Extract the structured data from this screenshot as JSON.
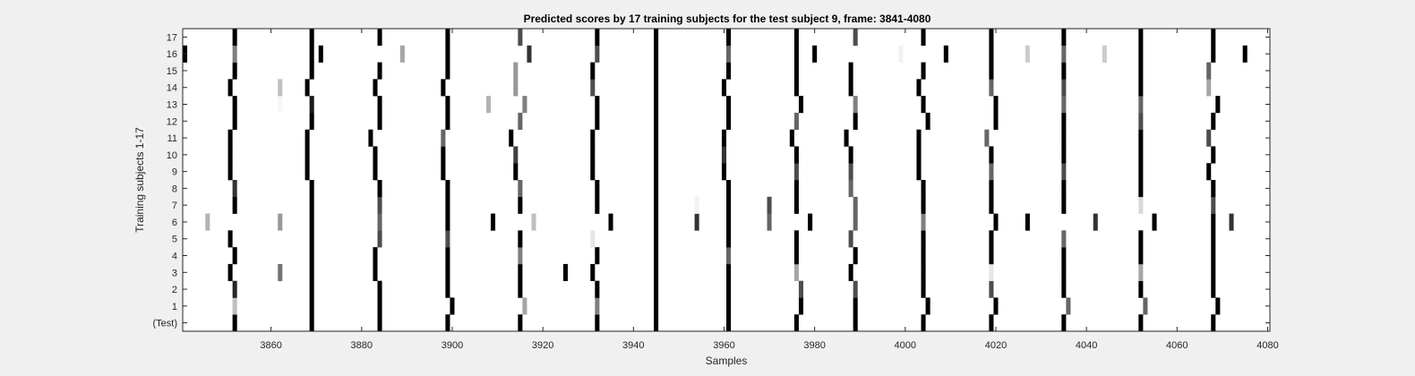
{
  "chart_data": {
    "type": "heatmap",
    "title": "Predicted scores by 17 training subjects for the test subject 9, frame: 3841-4080",
    "xlabel": "Samples",
    "ylabel": "Training subjects 1-17",
    "xlim": [
      3841,
      4080
    ],
    "xticks": [
      3860,
      3880,
      3900,
      3920,
      3940,
      3960,
      3980,
      4000,
      4020,
      4040,
      4060,
      4080
    ],
    "rows": [
      "(Test)",
      "1",
      "2",
      "3",
      "4",
      "5",
      "6",
      "7",
      "8",
      "9",
      "10",
      "11",
      "12",
      "13",
      "14",
      "15",
      "16",
      "17"
    ],
    "colormap": "gray (0 = black, 1 = white)",
    "background_value": 1,
    "marks_note": "each entry: [sample, intensity] where intensity is darkness 0-1",
    "marks": [
      [
        [
          3852,
          1
        ],
        [
          3869,
          1
        ],
        [
          3884,
          1
        ],
        [
          3899,
          1
        ],
        [
          3915,
          1
        ],
        [
          3932,
          1
        ],
        [
          3945,
          1
        ],
        [
          3961,
          1
        ],
        [
          3976,
          1
        ],
        [
          3989,
          1
        ],
        [
          4004,
          1
        ],
        [
          4019,
          1
        ],
        [
          4035,
          1
        ],
        [
          4052,
          1
        ],
        [
          4068,
          1
        ]
      ],
      [
        [
          3852,
          0.25
        ],
        [
          3869,
          1
        ],
        [
          3884,
          1
        ],
        [
          3900,
          1
        ],
        [
          3916,
          0.35
        ],
        [
          3932,
          0.5
        ],
        [
          3945,
          1
        ],
        [
          3961,
          1
        ],
        [
          3977,
          1
        ],
        [
          3989,
          1
        ],
        [
          4005,
          1
        ],
        [
          4020,
          1
        ],
        [
          4036,
          0.6
        ],
        [
          4053,
          0.6
        ],
        [
          4069,
          1
        ]
      ],
      [
        [
          3852,
          0.85
        ],
        [
          3869,
          1
        ],
        [
          3884,
          1
        ],
        [
          3899,
          1
        ],
        [
          3915,
          1
        ],
        [
          3932,
          1
        ],
        [
          3945,
          1
        ],
        [
          3961,
          1
        ],
        [
          3977,
          0.7
        ],
        [
          3989,
          0.7
        ],
        [
          4004,
          1
        ],
        [
          4019,
          0.7
        ],
        [
          4035,
          1
        ],
        [
          4052,
          1
        ],
        [
          4068,
          1
        ]
      ],
      [
        [
          3851,
          1
        ],
        [
          3862,
          0.55
        ],
        [
          3869,
          1
        ],
        [
          3883,
          1
        ],
        [
          3899,
          1
        ],
        [
          3915,
          1
        ],
        [
          3925,
          1
        ],
        [
          3931,
          1
        ],
        [
          3945,
          1
        ],
        [
          3961,
          1
        ],
        [
          3976,
          0.35
        ],
        [
          3988,
          1
        ],
        [
          4004,
          1
        ],
        [
          4019,
          0.1
        ],
        [
          4035,
          1
        ],
        [
          4052,
          0.35
        ],
        [
          4068,
          1
        ]
      ],
      [
        [
          3852,
          1
        ],
        [
          3869,
          1
        ],
        [
          3883,
          1
        ],
        [
          3899,
          1
        ],
        [
          3915,
          0.5
        ],
        [
          3932,
          1
        ],
        [
          3945,
          1
        ],
        [
          3961,
          0.6
        ],
        [
          3976,
          1
        ],
        [
          3989,
          1
        ],
        [
          4004,
          1
        ],
        [
          4019,
          1
        ],
        [
          4035,
          1
        ],
        [
          4052,
          1
        ],
        [
          4068,
          1
        ]
      ],
      [
        [
          3851,
          1
        ],
        [
          3869,
          1
        ],
        [
          3884,
          0.7
        ],
        [
          3899,
          0.7
        ],
        [
          3915,
          1
        ],
        [
          3931,
          0.1
        ],
        [
          3945,
          1
        ],
        [
          3961,
          1
        ],
        [
          3976,
          1
        ],
        [
          3988,
          0.7
        ],
        [
          4004,
          1
        ],
        [
          4019,
          1
        ],
        [
          4035,
          0.6
        ],
        [
          4052,
          1
        ],
        [
          4068,
          1
        ]
      ],
      [
        [
          3846,
          0.3
        ],
        [
          3862,
          0.4
        ],
        [
          3869,
          1
        ],
        [
          3884,
          0.6
        ],
        [
          3899,
          1
        ],
        [
          3909,
          1
        ],
        [
          3918,
          0.25
        ],
        [
          3935,
          1
        ],
        [
          3945,
          1
        ],
        [
          3954,
          0.8
        ],
        [
          3961,
          1
        ],
        [
          3970,
          0.6
        ],
        [
          3979,
          1
        ],
        [
          3989,
          0.6
        ],
        [
          4004,
          0.5
        ],
        [
          4020,
          1
        ],
        [
          4027,
          1
        ],
        [
          4042,
          0.8
        ],
        [
          4055,
          1
        ],
        [
          4068,
          1
        ],
        [
          4072,
          0.8
        ]
      ],
      [
        [
          3852,
          1
        ],
        [
          3869,
          1
        ],
        [
          3884,
          0.7
        ],
        [
          3899,
          1
        ],
        [
          3915,
          1
        ],
        [
          3932,
          1
        ],
        [
          3945,
          1
        ],
        [
          3954,
          0.05
        ],
        [
          3961,
          1
        ],
        [
          3970,
          0.7
        ],
        [
          3976,
          1
        ],
        [
          3989,
          0.6
        ],
        [
          4004,
          1
        ],
        [
          4019,
          1
        ],
        [
          4035,
          1
        ],
        [
          4052,
          0.15
        ],
        [
          4068,
          0.7
        ]
      ],
      [
        [
          3852,
          0.8
        ],
        [
          3869,
          1
        ],
        [
          3884,
          1
        ],
        [
          3899,
          1
        ],
        [
          3915,
          0.6
        ],
        [
          3932,
          1
        ],
        [
          3945,
          1
        ],
        [
          3961,
          1
        ],
        [
          3976,
          1
        ],
        [
          3988,
          0.6
        ],
        [
          4004,
          1
        ],
        [
          4019,
          1
        ],
        [
          4035,
          1
        ],
        [
          4052,
          1
        ],
        [
          4068,
          1
        ]
      ],
      [
        [
          3851,
          1
        ],
        [
          3868,
          1
        ],
        [
          3883,
          1
        ],
        [
          3898,
          1
        ],
        [
          3914,
          1
        ],
        [
          3931,
          1
        ],
        [
          3945,
          1
        ],
        [
          3960,
          1
        ],
        [
          3976,
          0.7
        ],
        [
          3988,
          0.7
        ],
        [
          4003,
          1
        ],
        [
          4019,
          0.6
        ],
        [
          4035,
          0.7
        ],
        [
          4052,
          1
        ],
        [
          4067,
          1
        ]
      ],
      [
        [
          3851,
          1
        ],
        [
          3868,
          1
        ],
        [
          3883,
          1
        ],
        [
          3898,
          1
        ],
        [
          3914,
          0.75
        ],
        [
          3931,
          1
        ],
        [
          3945,
          1
        ],
        [
          3960,
          0.8
        ],
        [
          3976,
          1
        ],
        [
          3988,
          1
        ],
        [
          4003,
          1
        ],
        [
          4019,
          1
        ],
        [
          4035,
          1
        ],
        [
          4052,
          1
        ],
        [
          4068,
          1
        ]
      ],
      [
        [
          3851,
          1
        ],
        [
          3868,
          1
        ],
        [
          3882,
          1
        ],
        [
          3898,
          0.6
        ],
        [
          3913,
          1
        ],
        [
          3931,
          1
        ],
        [
          3945,
          1
        ],
        [
          3960,
          1
        ],
        [
          3975,
          1
        ],
        [
          3987,
          1
        ],
        [
          4003,
          1
        ],
        [
          4018,
          0.6
        ],
        [
          4035,
          1
        ],
        [
          4052,
          1
        ],
        [
          4067,
          0.7
        ]
      ],
      [
        [
          3852,
          1
        ],
        [
          3869,
          1
        ],
        [
          3884,
          1
        ],
        [
          3899,
          1
        ],
        [
          3915,
          0.6
        ],
        [
          3932,
          1
        ],
        [
          3945,
          1
        ],
        [
          3961,
          1
        ],
        [
          3976,
          0.6
        ],
        [
          3989,
          1
        ],
        [
          4005,
          1
        ],
        [
          4020,
          1
        ],
        [
          4035,
          1
        ],
        [
          4052,
          0.7
        ],
        [
          4068,
          1
        ]
      ],
      [
        [
          3852,
          1
        ],
        [
          3862,
          0.03
        ],
        [
          3869,
          0.9
        ],
        [
          3884,
          1
        ],
        [
          3899,
          1
        ],
        [
          3908,
          0.3
        ],
        [
          3916,
          0.5
        ],
        [
          3932,
          1
        ],
        [
          3945,
          1
        ],
        [
          3961,
          1
        ],
        [
          3977,
          1
        ],
        [
          3989,
          0.5
        ],
        [
          4004,
          1
        ],
        [
          4020,
          1
        ],
        [
          4035,
          0.6
        ],
        [
          4052,
          0.6
        ],
        [
          4069,
          1
        ]
      ],
      [
        [
          3851,
          1
        ],
        [
          3862,
          0.25
        ],
        [
          3868,
          1
        ],
        [
          3883,
          1
        ],
        [
          3898,
          1
        ],
        [
          3914,
          0.4
        ],
        [
          3931,
          0.7
        ],
        [
          3945,
          1
        ],
        [
          3960,
          1
        ],
        [
          3976,
          1
        ],
        [
          3988,
          1
        ],
        [
          4003,
          1
        ],
        [
          4019,
          0.6
        ],
        [
          4035,
          0.7
        ],
        [
          4052,
          1
        ],
        [
          4067,
          0.35
        ]
      ],
      [
        [
          3852,
          1
        ],
        [
          3869,
          1
        ],
        [
          3884,
          1
        ],
        [
          3899,
          1
        ],
        [
          3914,
          0.4
        ],
        [
          3931,
          1
        ],
        [
          3945,
          1
        ],
        [
          3961,
          1
        ],
        [
          3976,
          1
        ],
        [
          3988,
          1
        ],
        [
          4004,
          1
        ],
        [
          4019,
          1
        ],
        [
          4035,
          1
        ],
        [
          4052,
          1
        ],
        [
          4067,
          0.6
        ]
      ],
      [
        [
          3841,
          1
        ],
        [
          3852,
          0.5
        ],
        [
          3869,
          1
        ],
        [
          3871,
          1
        ],
        [
          3889,
          0.35
        ],
        [
          3899,
          1
        ],
        [
          3917,
          0.8
        ],
        [
          3932,
          0.7
        ],
        [
          3945,
          1
        ],
        [
          3961,
          0.6
        ],
        [
          3976,
          1
        ],
        [
          3980,
          1
        ],
        [
          3999,
          0.05
        ],
        [
          4009,
          1
        ],
        [
          4019,
          1
        ],
        [
          4027,
          0.2
        ],
        [
          4035,
          0.6
        ],
        [
          4044,
          0.2
        ],
        [
          4052,
          1
        ],
        [
          4068,
          1
        ],
        [
          4075,
          1
        ]
      ],
      [
        [
          3852,
          1
        ],
        [
          3869,
          1
        ],
        [
          3884,
          1
        ],
        [
          3899,
          1
        ],
        [
          3915,
          0.7
        ],
        [
          3932,
          1
        ],
        [
          3945,
          1
        ],
        [
          3961,
          1
        ],
        [
          3976,
          1
        ],
        [
          3989,
          0.7
        ],
        [
          4004,
          1
        ],
        [
          4019,
          1
        ],
        [
          4035,
          1
        ],
        [
          4052,
          1
        ],
        [
          4068,
          1
        ]
      ]
    ]
  }
}
